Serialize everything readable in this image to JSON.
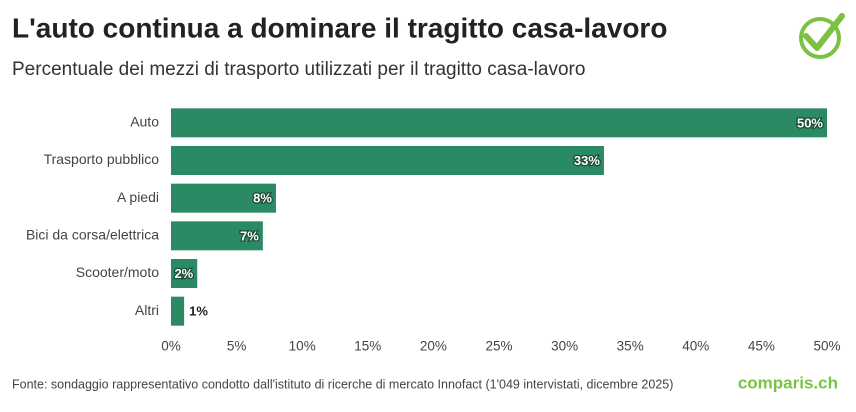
{
  "chart_data": {
    "type": "bar",
    "orientation": "horizontal",
    "title": "L'auto continua a dominare il tragitto casa-lavoro",
    "subtitle": "Percentuale dei mezzi di trasporto utilizzati per il tragitto casa-lavoro",
    "categories": [
      "Auto",
      "Trasporto pubblico",
      "A piedi",
      "Bici da corsa/elettrica",
      "Scooter/moto",
      "Altri"
    ],
    "values": [
      50,
      33,
      8,
      7,
      2,
      1
    ],
    "value_labels": [
      "50%",
      "33%",
      "8%",
      "7%",
      "2%",
      "1%"
    ],
    "color": "#2a8a63",
    "xlim": [
      0,
      50
    ],
    "xticks": [
      {
        "value": 0,
        "label": "0%"
      },
      {
        "value": 5,
        "label": "5%"
      },
      {
        "value": 10,
        "label": "10%"
      },
      {
        "value": 15,
        "label": "15%"
      },
      {
        "value": 20,
        "label": "20%"
      },
      {
        "value": 25,
        "label": "25%"
      },
      {
        "value": 30,
        "label": "30%"
      },
      {
        "value": 35,
        "label": "35%"
      },
      {
        "value": 40,
        "label": "40%"
      },
      {
        "value": 45,
        "label": "45%"
      },
      {
        "value": 50,
        "label": "50%"
      }
    ],
    "grid": false,
    "source": "Fonte: sondaggio rappresentativo condotto dall'istituto di ricerche di mercato Innofact (1'049 intervistati, dicembre 2025)",
    "logo": "comparis.ch"
  }
}
